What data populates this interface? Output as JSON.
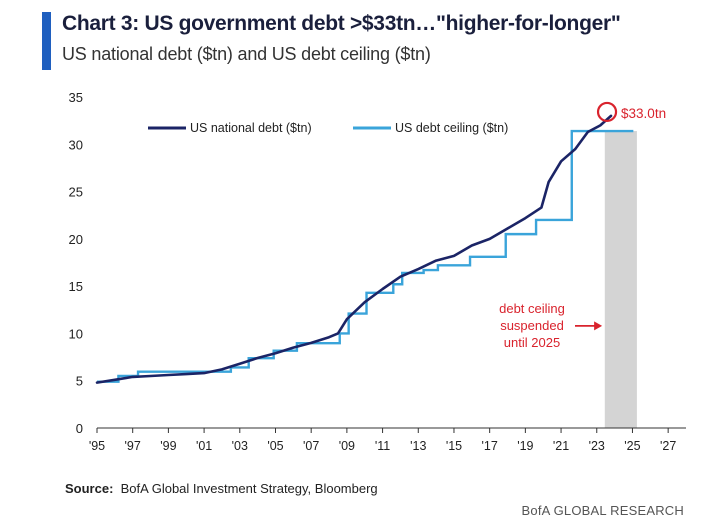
{
  "header": {
    "title": "Chart 3: US government debt >$33tn…\"higher-for-longer\"",
    "subtitle": "US national debt ($tn) and US debt ceiling ($tn)"
  },
  "colors": {
    "accent": "#1f5fbf",
    "debt_line": "#1b2466",
    "ceiling_line": "#3aa4da",
    "highlight_circle": "#d9232d",
    "annotation_text": "#d9232d",
    "shade": "#d4d4d4"
  },
  "chart_data": {
    "type": "line",
    "xlim": [
      1995,
      2028
    ],
    "ylim": [
      0,
      35
    ],
    "y_ticks": [
      0,
      5,
      10,
      15,
      20,
      25,
      30,
      35
    ],
    "x_ticks": [
      {
        "v": 1995,
        "label": "'95"
      },
      {
        "v": 1997,
        "label": "'97"
      },
      {
        "v": 1999,
        "label": "'99"
      },
      {
        "v": 2001,
        "label": "'01"
      },
      {
        "v": 2003,
        "label": "'03"
      },
      {
        "v": 2005,
        "label": "'05"
      },
      {
        "v": 2007,
        "label": "'07"
      },
      {
        "v": 2009,
        "label": "'09"
      },
      {
        "v": 2011,
        "label": "'11"
      },
      {
        "v": 2013,
        "label": "'13"
      },
      {
        "v": 2015,
        "label": "'15"
      },
      {
        "v": 2017,
        "label": "'17"
      },
      {
        "v": 2019,
        "label": "'19"
      },
      {
        "v": 2021,
        "label": "'21"
      },
      {
        "v": 2023,
        "label": "'23"
      },
      {
        "v": 2025,
        "label": "'25"
      },
      {
        "v": 2027,
        "label": "'27"
      }
    ],
    "grid": false,
    "legend_position": "top",
    "series": [
      {
        "name": "US national debt ($tn)",
        "style": "line",
        "points": [
          [
            1995,
            4.8
          ],
          [
            1996,
            5.1
          ],
          [
            1997,
            5.4
          ],
          [
            1998,
            5.5
          ],
          [
            1999,
            5.6
          ],
          [
            2000,
            5.7
          ],
          [
            2001,
            5.8
          ],
          [
            2002,
            6.2
          ],
          [
            2003,
            6.8
          ],
          [
            2004,
            7.4
          ],
          [
            2005,
            7.9
          ],
          [
            2006,
            8.5
          ],
          [
            2007,
            9.0
          ],
          [
            2008,
            9.6
          ],
          [
            2008.5,
            10.0
          ],
          [
            2009,
            11.5
          ],
          [
            2010,
            13.3
          ],
          [
            2011,
            14.7
          ],
          [
            2012,
            16.0
          ],
          [
            2013,
            16.8
          ],
          [
            2014,
            17.7
          ],
          [
            2015,
            18.2
          ],
          [
            2016,
            19.3
          ],
          [
            2017,
            20.0
          ],
          [
            2018,
            21.1
          ],
          [
            2019,
            22.2
          ],
          [
            2019.9,
            23.3
          ],
          [
            2020.3,
            26.0
          ],
          [
            2021,
            28.2
          ],
          [
            2021.8,
            29.5
          ],
          [
            2022.5,
            31.3
          ],
          [
            2023.2,
            32.0
          ],
          [
            2023.8,
            33.0
          ]
        ]
      },
      {
        "name": "US debt ceiling ($tn)",
        "style": "step",
        "points": [
          [
            1995,
            4.9
          ],
          [
            1996.2,
            5.5
          ],
          [
            1997.3,
            5.95
          ],
          [
            2002.5,
            6.4
          ],
          [
            2003.5,
            7.38
          ],
          [
            2004.9,
            8.18
          ],
          [
            2006.2,
            8.97
          ],
          [
            2008.6,
            10.0
          ],
          [
            2009.1,
            12.1
          ],
          [
            2010.1,
            14.3
          ],
          [
            2011.6,
            15.2
          ],
          [
            2012.1,
            16.4
          ],
          [
            2013.3,
            16.7
          ],
          [
            2014.1,
            17.2
          ],
          [
            2015.9,
            18.1
          ],
          [
            2017.9,
            20.5
          ],
          [
            2019.6,
            22.0
          ],
          [
            2021.6,
            31.4
          ],
          [
            2025.0,
            31.4
          ]
        ]
      }
    ],
    "shaded_region": {
      "x": [
        2023.45,
        2025.25
      ],
      "y": [
        0,
        31.4
      ]
    },
    "annotations": [
      {
        "text": "$33.0tn",
        "x": 2023.8,
        "y": 33.0
      },
      {
        "lines": [
          "debt ceiling",
          "suspended",
          "until 2025"
        ],
        "arrow_to": [
          2023.3,
          10.8
        ]
      }
    ]
  },
  "footer": {
    "source_label": "Source:",
    "source_text": "BofA Global Investment Strategy, Bloomberg",
    "brand": "BofA GLOBAL RESEARCH"
  }
}
